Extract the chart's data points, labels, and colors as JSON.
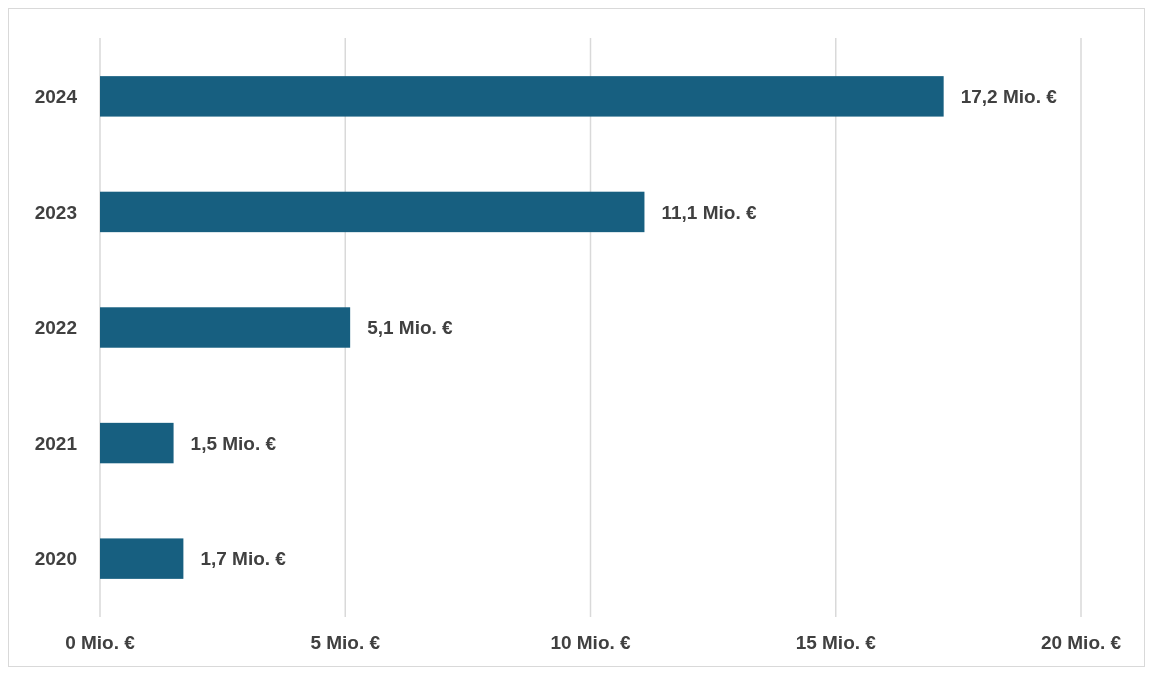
{
  "chart_data": {
    "type": "bar",
    "orientation": "horizontal",
    "categories": [
      "2024",
      "2023",
      "2022",
      "2021",
      "2020"
    ],
    "values": [
      17.2,
      11.1,
      5.1,
      1.5,
      1.7
    ],
    "value_labels": [
      "17,2 Mio. €",
      "11,1 Mio. €",
      "5,1 Mio. €",
      "1,5 Mio. €",
      "1,7 Mio. €"
    ],
    "color": "#175f80",
    "xlim": [
      0,
      20
    ],
    "xticks": [
      {
        "value": 0,
        "label": "0 Mio. €"
      },
      {
        "value": 5,
        "label": "5 Mio. €"
      },
      {
        "value": 10,
        "label": "10 Mio. €"
      },
      {
        "value": 15,
        "label": "15 Mio. €"
      },
      {
        "value": 20,
        "label": "20 Mio. €"
      }
    ],
    "grid": "x"
  }
}
